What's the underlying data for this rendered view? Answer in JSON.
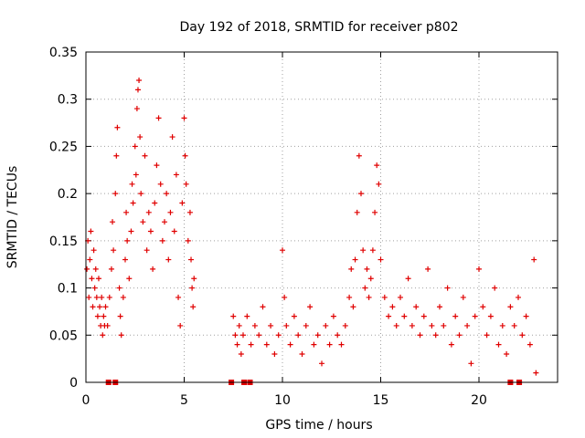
{
  "chart_data": {
    "type": "scatter",
    "title": "Day 192 of 2018, SRMTID for receiver p802",
    "xlabel": "GPS time / hours",
    "ylabel": "SRMTID / TECUs",
    "xlim": [
      0,
      24
    ],
    "ylim": [
      0,
      0.35
    ],
    "x_ticks": [
      0,
      5,
      10,
      15,
      20
    ],
    "x_tick_labels": [
      "0",
      "5",
      "10",
      "15",
      "20"
    ],
    "y_ticks": [
      0,
      0.05,
      0.1,
      0.15,
      0.2,
      0.25,
      0.3,
      0.35
    ],
    "y_tick_labels": [
      "0",
      "0.05",
      "0.1",
      "0.15",
      "0.2",
      "0.25",
      "0.3",
      "0.35"
    ],
    "grid": true,
    "marker": "plus",
    "color": "#e00000",
    "gap_markers_x": [
      1.15,
      1.5,
      7.4,
      8.05,
      8.35,
      21.6,
      22.05
    ],
    "series": [
      {
        "name": "SRMTID",
        "points": [
          [
            0.05,
            0.12
          ],
          [
            0.1,
            0.15
          ],
          [
            0.15,
            0.09
          ],
          [
            0.2,
            0.13
          ],
          [
            0.25,
            0.16
          ],
          [
            0.3,
            0.11
          ],
          [
            0.35,
            0.08
          ],
          [
            0.4,
            0.14
          ],
          [
            0.45,
            0.1
          ],
          [
            0.5,
            0.12
          ],
          [
            0.55,
            0.09
          ],
          [
            0.6,
            0.07
          ],
          [
            0.65,
            0.11
          ],
          [
            0.7,
            0.08
          ],
          [
            0.75,
            0.06
          ],
          [
            0.8,
            0.09
          ],
          [
            0.85,
            0.05
          ],
          [
            0.9,
            0.07
          ],
          [
            0.95,
            0.06
          ],
          [
            1.0,
            0.08
          ],
          [
            1.1,
            0.06
          ],
          [
            1.2,
            0.09
          ],
          [
            1.3,
            0.12
          ],
          [
            1.35,
            0.17
          ],
          [
            1.4,
            0.14
          ],
          [
            1.5,
            0.2
          ],
          [
            1.55,
            0.24
          ],
          [
            1.6,
            0.27
          ],
          [
            1.7,
            0.1
          ],
          [
            1.75,
            0.07
          ],
          [
            1.8,
            0.05
          ],
          [
            1.9,
            0.09
          ],
          [
            2.0,
            0.13
          ],
          [
            2.05,
            0.18
          ],
          [
            2.1,
            0.15
          ],
          [
            2.2,
            0.11
          ],
          [
            2.3,
            0.16
          ],
          [
            2.35,
            0.21
          ],
          [
            2.4,
            0.19
          ],
          [
            2.5,
            0.25
          ],
          [
            2.55,
            0.22
          ],
          [
            2.6,
            0.29
          ],
          [
            2.65,
            0.31
          ],
          [
            2.7,
            0.32
          ],
          [
            2.75,
            0.26
          ],
          [
            2.8,
            0.2
          ],
          [
            2.9,
            0.17
          ],
          [
            3.0,
            0.24
          ],
          [
            3.1,
            0.14
          ],
          [
            3.2,
            0.18
          ],
          [
            3.3,
            0.16
          ],
          [
            3.4,
            0.12
          ],
          [
            3.5,
            0.19
          ],
          [
            3.6,
            0.23
          ],
          [
            3.7,
            0.28
          ],
          [
            3.8,
            0.21
          ],
          [
            3.9,
            0.15
          ],
          [
            4.0,
            0.17
          ],
          [
            4.1,
            0.2
          ],
          [
            4.2,
            0.13
          ],
          [
            4.3,
            0.18
          ],
          [
            4.4,
            0.26
          ],
          [
            4.5,
            0.16
          ],
          [
            4.6,
            0.22
          ],
          [
            4.7,
            0.09
          ],
          [
            4.8,
            0.06
          ],
          [
            4.9,
            0.19
          ],
          [
            5.0,
            0.28
          ],
          [
            5.05,
            0.24
          ],
          [
            5.1,
            0.21
          ],
          [
            5.2,
            0.15
          ],
          [
            5.3,
            0.18
          ],
          [
            5.35,
            0.13
          ],
          [
            5.4,
            0.1
          ],
          [
            5.45,
            0.08
          ],
          [
            5.5,
            0.11
          ],
          [
            7.5,
            0.07
          ],
          [
            7.6,
            0.05
          ],
          [
            7.7,
            0.04
          ],
          [
            7.8,
            0.06
          ],
          [
            7.9,
            0.03
          ],
          [
            8.0,
            0.05
          ],
          [
            8.2,
            0.07
          ],
          [
            8.4,
            0.04
          ],
          [
            8.6,
            0.06
          ],
          [
            8.8,
            0.05
          ],
          [
            9.0,
            0.08
          ],
          [
            9.2,
            0.04
          ],
          [
            9.4,
            0.06
          ],
          [
            9.6,
            0.03
          ],
          [
            9.8,
            0.05
          ],
          [
            10.0,
            0.14
          ],
          [
            10.1,
            0.09
          ],
          [
            10.2,
            0.06
          ],
          [
            10.4,
            0.04
          ],
          [
            10.6,
            0.07
          ],
          [
            10.8,
            0.05
          ],
          [
            11.0,
            0.03
          ],
          [
            11.2,
            0.06
          ],
          [
            11.4,
            0.08
          ],
          [
            11.6,
            0.04
          ],
          [
            11.8,
            0.05
          ],
          [
            12.0,
            0.02
          ],
          [
            12.2,
            0.06
          ],
          [
            12.4,
            0.04
          ],
          [
            12.6,
            0.07
          ],
          [
            12.8,
            0.05
          ],
          [
            13.0,
            0.04
          ],
          [
            13.2,
            0.06
          ],
          [
            13.4,
            0.09
          ],
          [
            13.5,
            0.12
          ],
          [
            13.6,
            0.08
          ],
          [
            13.7,
            0.13
          ],
          [
            13.8,
            0.18
          ],
          [
            13.9,
            0.24
          ],
          [
            14.0,
            0.2
          ],
          [
            14.1,
            0.14
          ],
          [
            14.2,
            0.1
          ],
          [
            14.3,
            0.12
          ],
          [
            14.4,
            0.09
          ],
          [
            14.5,
            0.11
          ],
          [
            14.6,
            0.14
          ],
          [
            14.7,
            0.18
          ],
          [
            14.8,
            0.23
          ],
          [
            14.9,
            0.21
          ],
          [
            15.0,
            0.13
          ],
          [
            15.2,
            0.09
          ],
          [
            15.4,
            0.07
          ],
          [
            15.6,
            0.08
          ],
          [
            15.8,
            0.06
          ],
          [
            16.0,
            0.09
          ],
          [
            16.2,
            0.07
          ],
          [
            16.4,
            0.11
          ],
          [
            16.6,
            0.06
          ],
          [
            16.8,
            0.08
          ],
          [
            17.0,
            0.05
          ],
          [
            17.2,
            0.07
          ],
          [
            17.4,
            0.12
          ],
          [
            17.6,
            0.06
          ],
          [
            17.8,
            0.05
          ],
          [
            18.0,
            0.08
          ],
          [
            18.2,
            0.06
          ],
          [
            18.4,
            0.1
          ],
          [
            18.6,
            0.04
          ],
          [
            18.8,
            0.07
          ],
          [
            19.0,
            0.05
          ],
          [
            19.2,
            0.09
          ],
          [
            19.4,
            0.06
          ],
          [
            19.6,
            0.02
          ],
          [
            19.8,
            0.07
          ],
          [
            20.0,
            0.12
          ],
          [
            20.2,
            0.08
          ],
          [
            20.4,
            0.05
          ],
          [
            20.6,
            0.07
          ],
          [
            20.8,
            0.1
          ],
          [
            21.0,
            0.04
          ],
          [
            21.2,
            0.06
          ],
          [
            21.4,
            0.03
          ],
          [
            21.6,
            0.08
          ],
          [
            21.8,
            0.06
          ],
          [
            22.0,
            0.09
          ],
          [
            22.2,
            0.05
          ],
          [
            22.4,
            0.07
          ],
          [
            22.6,
            0.04
          ],
          [
            22.8,
            0.13
          ],
          [
            22.9,
            0.01
          ]
        ]
      }
    ]
  }
}
